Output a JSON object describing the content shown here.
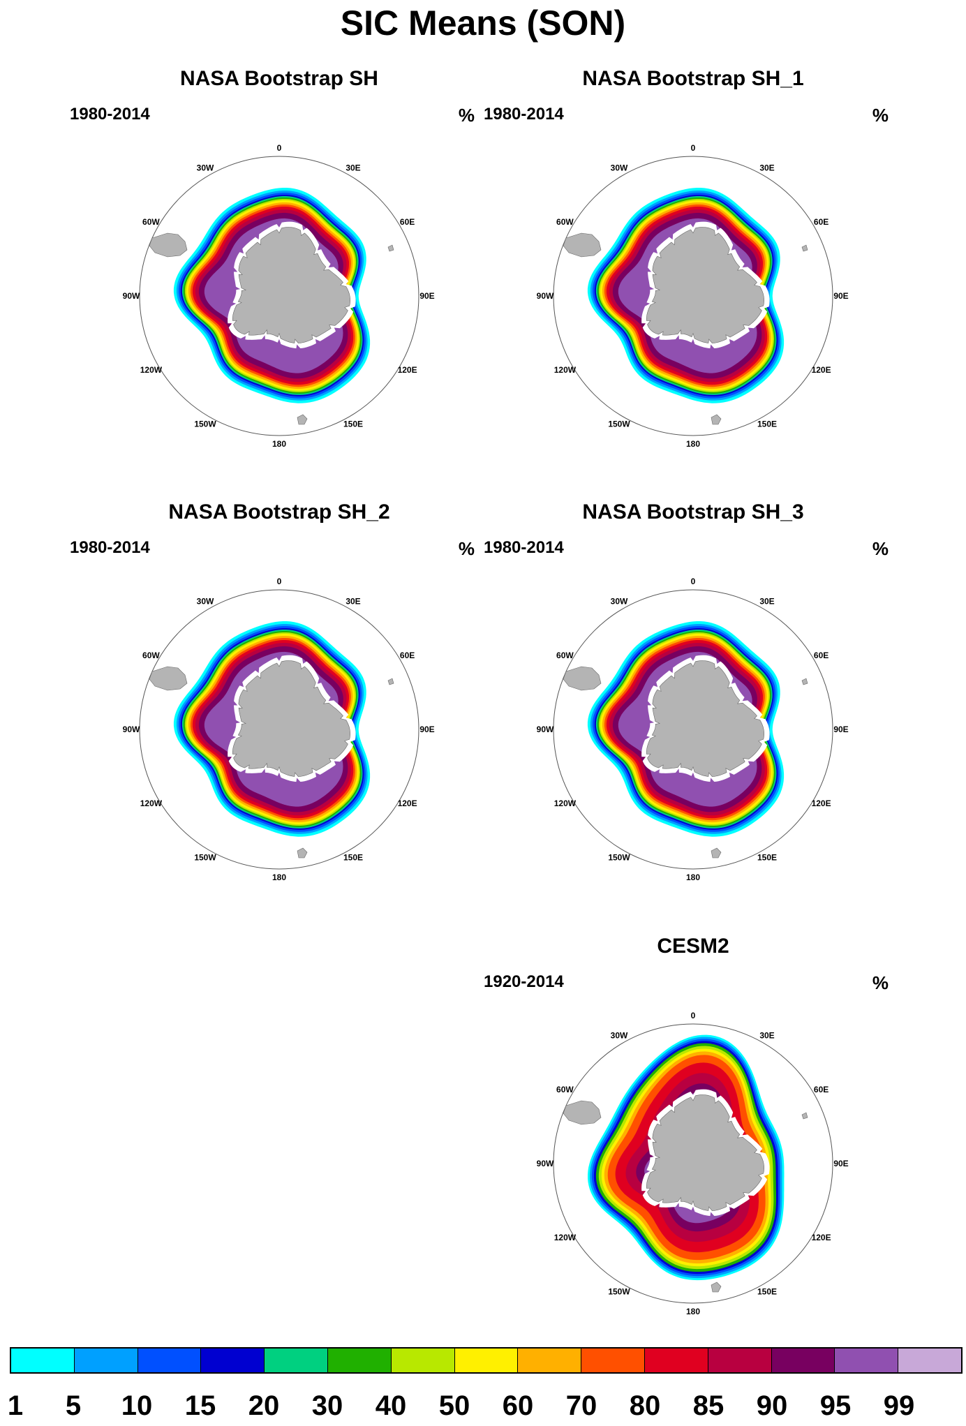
{
  "title": "SIC Means (SON)",
  "panels": [
    {
      "title": "NASA Bootstrap SH",
      "period": "1980-2014",
      "unit": "%"
    },
    {
      "title": "NASA Bootstrap SH_1",
      "period": "1980-2014",
      "unit": "%"
    },
    {
      "title": "NASA Bootstrap SH_2",
      "period": "1980-2014",
      "unit": "%"
    },
    {
      "title": "NASA Bootstrap SH_3",
      "period": "1980-2014",
      "unit": "%"
    },
    {
      "title": "CESM2",
      "period": "1920-2014",
      "unit": "%"
    }
  ],
  "longitude_labels": [
    "0",
    "30E",
    "60E",
    "90E",
    "120E",
    "150E",
    "180",
    "150W",
    "120W",
    "90W",
    "60W",
    "30W"
  ],
  "colorbar": {
    "labels": [
      "1",
      "5",
      "10",
      "15",
      "20",
      "30",
      "40",
      "50",
      "60",
      "70",
      "80",
      "85",
      "90",
      "95",
      "99"
    ],
    "colors": [
      "#00ffff",
      "#00a0ff",
      "#0050ff",
      "#0000d0",
      "#00d080",
      "#20b000",
      "#b8e800",
      "#fff000",
      "#ffb000",
      "#ff5000",
      "#e00020",
      "#b80040",
      "#780060",
      "#9050b0",
      "#c8a8d8"
    ]
  },
  "colors": {
    "land": "#b4b4b4",
    "ocean": "#ffffff"
  }
}
